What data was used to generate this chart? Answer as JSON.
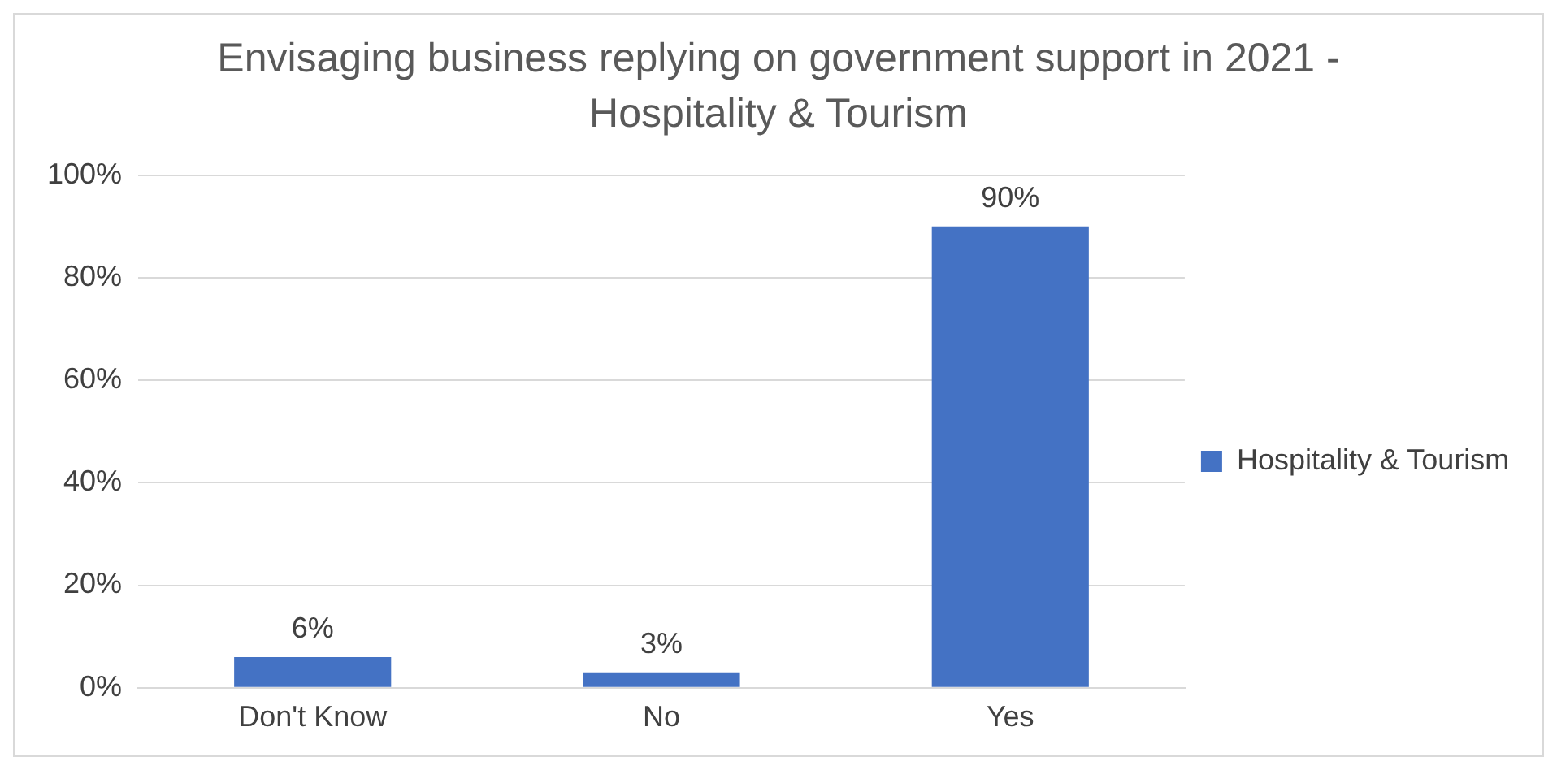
{
  "chart_data": {
    "type": "bar",
    "title": "Envisaging business replying on government support in 2021 - Hospitality & Tourism",
    "categories": [
      "Don't Know",
      "No",
      "Yes"
    ],
    "series": [
      {
        "name": "Hospitality & Tourism",
        "color": "#4472c4",
        "values": [
          6,
          3,
          90
        ],
        "value_labels": [
          "6%",
          "3%",
          "90%"
        ]
      }
    ],
    "ylim": [
      0,
      100
    ],
    "yticks": [
      {
        "value": 0,
        "label": "0%"
      },
      {
        "value": 20,
        "label": "20%"
      },
      {
        "value": 40,
        "label": "40%"
      },
      {
        "value": 60,
        "label": "60%"
      },
      {
        "value": 80,
        "label": "80%"
      },
      {
        "value": 100,
        "label": "100%"
      }
    ],
    "grid": "y",
    "legend": "right"
  }
}
